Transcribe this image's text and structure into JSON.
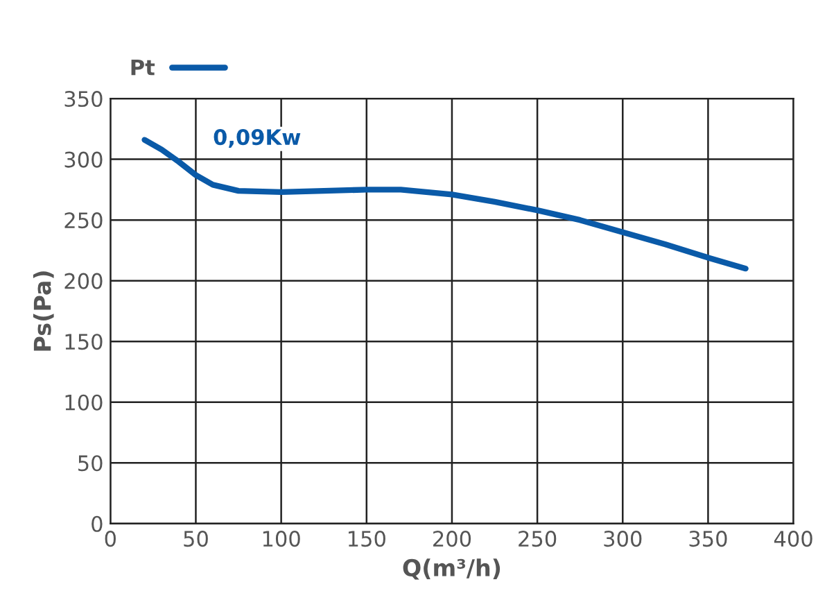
{
  "chart_data": {
    "type": "line",
    "xlabel": "Q(m³/h)",
    "ylabel": "Ps(Pa)",
    "x": [
      20,
      30,
      40,
      50,
      60,
      75,
      100,
      125,
      150,
      170,
      200,
      225,
      250,
      275,
      300,
      325,
      350,
      372
    ],
    "series": [
      {
        "name": "Pt",
        "color": "#0a5aa8",
        "values": [
          316,
          308,
          298,
          287,
          279,
          274,
          273,
          274,
          275,
          275,
          271,
          265,
          258,
          250,
          240,
          230,
          219,
          210
        ]
      }
    ],
    "annotations": [
      "0,09Kw"
    ],
    "xlim": [
      0,
      400
    ],
    "xticks": [
      0,
      50,
      100,
      150,
      200,
      250,
      300,
      350,
      400
    ],
    "ylim": [
      0,
      350
    ],
    "yticks": [
      0,
      50,
      100,
      150,
      200,
      250,
      300,
      350
    ],
    "grid": true,
    "legend": "top left",
    "marker": "none",
    "line_style": "solid"
  }
}
